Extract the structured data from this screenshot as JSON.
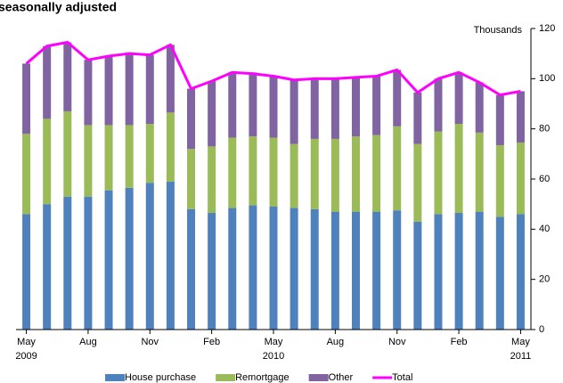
{
  "chart_data": {
    "type": "stacked_bar_line",
    "title": "seasonally adjusted",
    "y_axis_label": "Thousands",
    "categories": [
      "May 2009",
      null,
      null,
      "Aug",
      null,
      null,
      "Nov",
      null,
      null,
      "Feb",
      null,
      null,
      "May 2010",
      null,
      null,
      "Aug",
      null,
      null,
      "Nov",
      null,
      null,
      "Feb",
      null,
      null,
      "May 2011"
    ],
    "series": [
      {
        "name": "House purchase",
        "color": "#4f81bd",
        "kind": "bar",
        "values": [
          46,
          50,
          53,
          53,
          55.5,
          56.5,
          58.5,
          59,
          48,
          46.5,
          48.5,
          49.5,
          49,
          48.5,
          48,
          47,
          47,
          47,
          47.5,
          43,
          46,
          46.5,
          47,
          45,
          46
        ]
      },
      {
        "name": "Remortgage",
        "color": "#9bbb59",
        "kind": "bar",
        "values": [
          32,
          34,
          34,
          28.5,
          26,
          25,
          23.5,
          27.5,
          24,
          26.5,
          28,
          27.5,
          27.5,
          25.5,
          28,
          29,
          30,
          30.5,
          33.5,
          31,
          33,
          35.5,
          31.5,
          28.5,
          28.5
        ]
      },
      {
        "name": "Other",
        "color": "#8064a2",
        "kind": "bar",
        "values": [
          28,
          29,
          27.5,
          26,
          27.5,
          28.5,
          27.5,
          27,
          24,
          26,
          26,
          25.5,
          24.5,
          25.5,
          24,
          24,
          23.5,
          23.5,
          22.5,
          20.5,
          21,
          20.5,
          20,
          20,
          20.5
        ]
      },
      {
        "name": "Total",
        "color": "#ff00ff",
        "kind": "line",
        "values": [
          106,
          113,
          114.5,
          107.5,
          109,
          110,
          109.5,
          113.5,
          96,
          99,
          102.5,
          102,
          101,
          99.5,
          100,
          100,
          100.5,
          101,
          103.5,
          94.5,
          100,
          102.5,
          98.5,
          93.5,
          95
        ]
      }
    ],
    "ylim": [
      0,
      120
    ],
    "yticks": [
      0,
      20,
      40,
      60,
      80,
      100,
      120
    ],
    "legend": "bottom"
  }
}
